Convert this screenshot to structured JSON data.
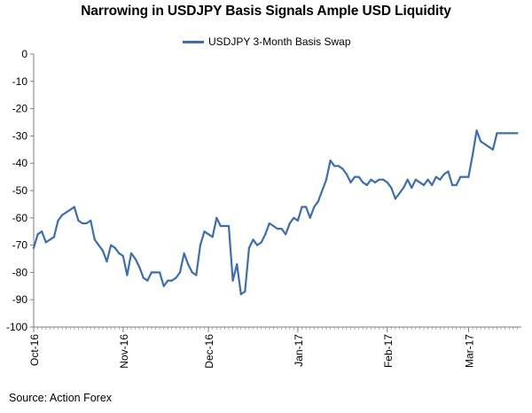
{
  "page_title": "Narrowing in USDJPY Basis Signals Ample USD Liquidity",
  "source": "Source: Action Forex",
  "colors": {
    "series": "#3b6eb4",
    "axis": "#7f7f7f"
  },
  "chart_data": {
    "type": "line",
    "title": "Narrowing in USDJPY Basis Signals Ample USD Liquidity",
    "xlabel": "",
    "ylabel": "",
    "ylim": [
      -100,
      0
    ],
    "yticks": [
      0,
      -10,
      -20,
      -30,
      -40,
      -50,
      -60,
      -70,
      -80,
      -90,
      -100
    ],
    "xlim": [
      0,
      120
    ],
    "xticks": [
      {
        "label": "Oct-16",
        "x": 0
      },
      {
        "label": "Nov-16",
        "x": 22
      },
      {
        "label": "Dec-16",
        "x": 43
      },
      {
        "label": "Jan-17",
        "x": 65
      },
      {
        "label": "Feb-17",
        "x": 87
      },
      {
        "label": "Mar-17",
        "x": 107
      }
    ],
    "legend": "top-center",
    "grid": false,
    "series": [
      {
        "name": "USDJPY 3-Month Basis Swap",
        "x": [
          0,
          1,
          2,
          3,
          4,
          5,
          6,
          7,
          8,
          9,
          10,
          11,
          12,
          13,
          14,
          15,
          16,
          17,
          18,
          19,
          20,
          21,
          22,
          23,
          24,
          25,
          26,
          27,
          28,
          29,
          30,
          31,
          32,
          33,
          34,
          35,
          36,
          37,
          38,
          39,
          40,
          41,
          42,
          43,
          44,
          45,
          46,
          47,
          48,
          49,
          50,
          51,
          52,
          53,
          54,
          55,
          56,
          57,
          58,
          59,
          60,
          61,
          62,
          63,
          64,
          65,
          66,
          67,
          68,
          69,
          70,
          71,
          72,
          73,
          74,
          75,
          76,
          77,
          78,
          79,
          80,
          81,
          82,
          83,
          84,
          85,
          86,
          87,
          88,
          89,
          90,
          91,
          92,
          93,
          94,
          95,
          96,
          97,
          98,
          99,
          100,
          101,
          102,
          103,
          104,
          105,
          106,
          107,
          108,
          109,
          110,
          111,
          112,
          113,
          114,
          115,
          116,
          117,
          118,
          119
        ],
        "values": [
          -71,
          -66,
          -65,
          -69,
          -68,
          -67,
          -61,
          -59,
          -58,
          -57,
          -56,
          -61,
          -62,
          -62,
          -61,
          -68,
          -70,
          -72,
          -76,
          -70,
          -71,
          -73,
          -74,
          -81,
          -73,
          -75,
          -78,
          -82,
          -83,
          -80,
          -80,
          -80,
          -85,
          -83,
          -83,
          -82,
          -80,
          -73,
          -77,
          -80,
          -81,
          -70,
          -65,
          -66,
          -67,
          -60,
          -63,
          -63,
          -63,
          -83,
          -77,
          -88,
          -87,
          -71,
          -68,
          -70,
          -69,
          -66,
          -62,
          -63,
          -64,
          -64,
          -66,
          -62,
          -60,
          -61,
          -56,
          -56,
          -60,
          -56,
          -54,
          -50,
          -46,
          -39,
          -41,
          -41,
          -42,
          -44,
          -47,
          -45,
          -45,
          -47,
          -48,
          -46,
          -47,
          -46,
          -46,
          -47,
          -49,
          -53,
          -51,
          -49,
          -46,
          -49,
          -46,
          -47,
          -48,
          -46,
          -48,
          -45,
          -46,
          -44,
          -43,
          -48,
          -48,
          -45,
          -45,
          -45,
          -37,
          -28,
          -32,
          -33,
          -34,
          -35,
          -29,
          -29,
          -29,
          -29,
          -29,
          -29
        ]
      }
    ]
  }
}
